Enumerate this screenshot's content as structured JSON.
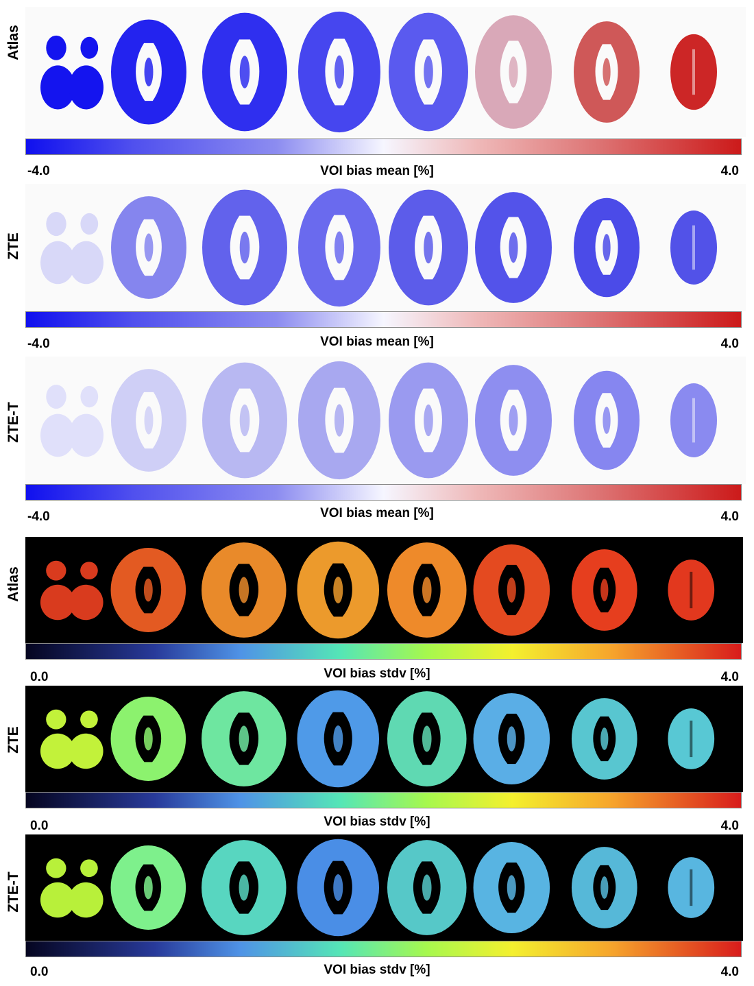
{
  "panels": [
    {
      "label": "Atlas",
      "scale": "mean",
      "colorbar": {
        "title": "VOI bias mean [%]",
        "min": "-4.0",
        "max": "4.0"
      },
      "slice_colors": [
        "#1414ef",
        "#2323ef",
        "#2f2fef",
        "#4646ef",
        "#5a5aef",
        "#d9a8b8",
        "#cf5858",
        "#cc2626"
      ]
    },
    {
      "label": "ZTE",
      "scale": "mean",
      "colorbar": {
        "title": "VOI bias mean [%]",
        "min": "-4.0",
        "max": "4.0"
      },
      "slice_colors": [
        "#d8d8f8",
        "#8585ee",
        "#6262ec",
        "#6a6aee",
        "#5c5cea",
        "#5353ea",
        "#4b4be8",
        "#5252e8"
      ]
    },
    {
      "label": "ZTE-T",
      "scale": "mean",
      "colorbar": {
        "title": "VOI bias mean [%]",
        "min": "-4.0",
        "max": "4.0"
      },
      "slice_colors": [
        "#e0e0fa",
        "#cfcff6",
        "#b8b8f2",
        "#a8a8f0",
        "#9a9af0",
        "#8e8ef0",
        "#8686f0",
        "#8a8af0"
      ]
    },
    {
      "label": "Atlas",
      "scale": "stdv",
      "colorbar": {
        "title": "VOI bias stdv [%]",
        "min": "0.0",
        "max": "4.0"
      },
      "slice_colors": [
        "#d93b1e",
        "#e35a22",
        "#e98a2a",
        "#ec9a2c",
        "#ee8a2a",
        "#e44a20",
        "#e63e1e",
        "#e2381e"
      ]
    },
    {
      "label": "ZTE",
      "scale": "stdv",
      "colorbar": {
        "title": "VOI bias stdv [%]",
        "min": "0.0",
        "max": "4.0"
      },
      "slice_colors": [
        "#c2f23a",
        "#8cf26e",
        "#6ee6a0",
        "#4f9ae8",
        "#5fd9b2",
        "#5aaee6",
        "#58c6d0",
        "#58c8d4"
      ]
    },
    {
      "label": "ZTE-T",
      "scale": "stdv",
      "colorbar": {
        "title": "VOI bias stdv [%]",
        "min": "0.0",
        "max": "4.0"
      },
      "slice_colors": [
        "#b8f03a",
        "#7ef08c",
        "#58d6c0",
        "#4a8ee6",
        "#56c8c8",
        "#58b4e2",
        "#56b8d8",
        "#58b6e0"
      ]
    }
  ]
}
